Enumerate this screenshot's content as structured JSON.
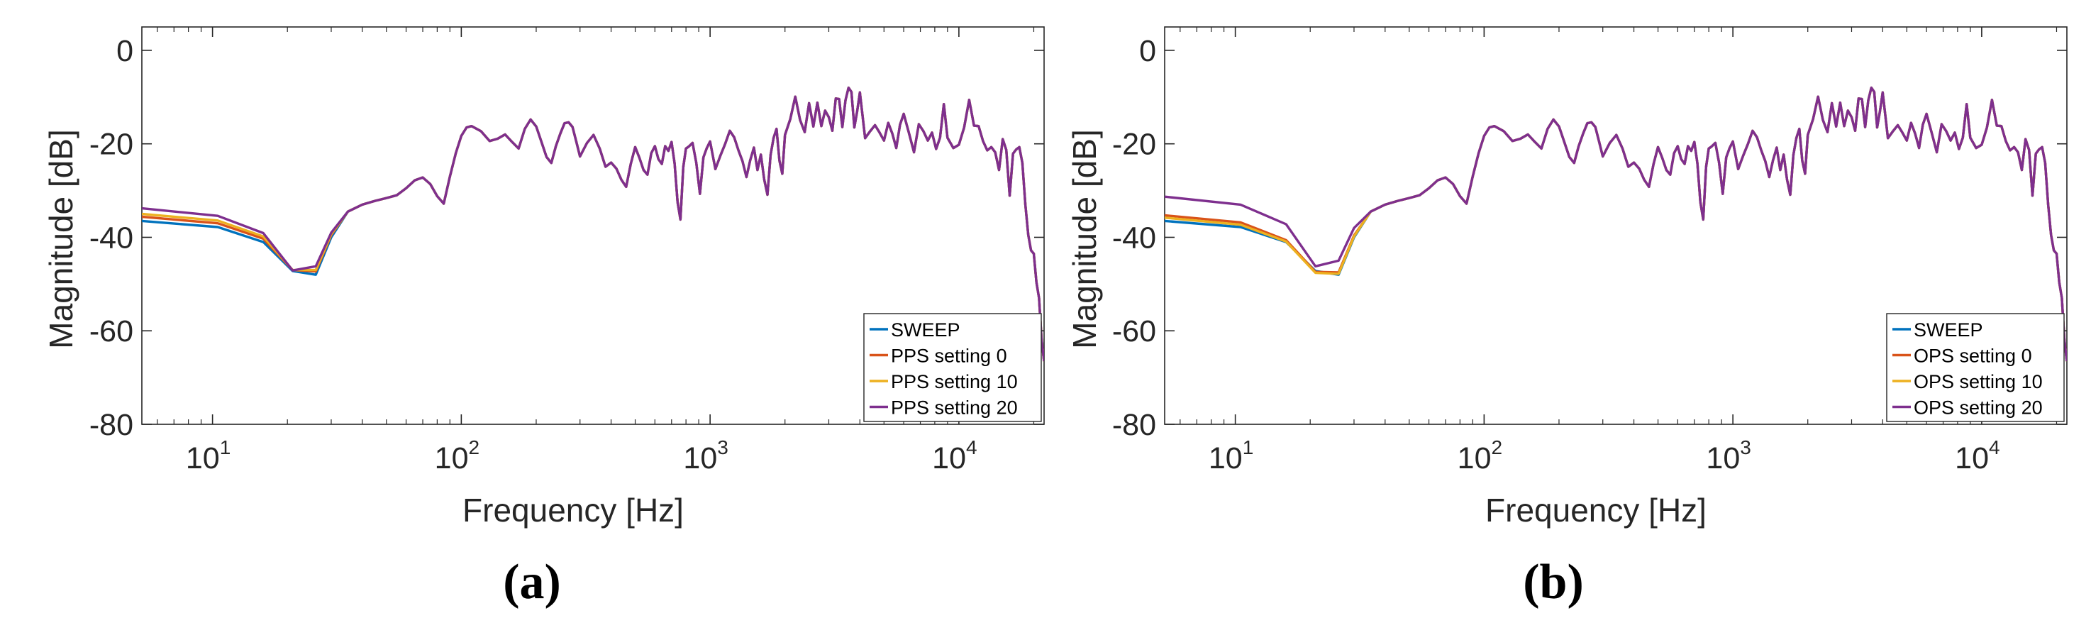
{
  "colors": {
    "sweep": "#0072BD",
    "setting0": "#D95319",
    "setting10": "#EDB120",
    "setting20": "#7E2F8E",
    "axis": "#262626"
  },
  "chart_data": [
    {
      "type": "line",
      "panel": "(a)",
      "xscale": "log",
      "xlabel": "Frequency [Hz]",
      "ylabel": "Magnitude [dB]",
      "xlim": [
        5.2,
        22000
      ],
      "ylim": [
        -80,
        5
      ],
      "xticks": [
        {
          "value": 10,
          "base": "10",
          "exp": "1"
        },
        {
          "value": 100,
          "base": "10",
          "exp": "2"
        },
        {
          "value": 1000,
          "base": "10",
          "exp": "3"
        },
        {
          "value": 10000,
          "base": "10",
          "exp": "4"
        }
      ],
      "yticks": [
        {
          "value": 0,
          "label": "0"
        },
        {
          "value": -20,
          "label": "-20"
        },
        {
          "value": -40,
          "label": "-40"
        },
        {
          "value": -60,
          "label": "-60"
        },
        {
          "value": -80,
          "label": "-80"
        }
      ],
      "legend_position": "bottom-right",
      "shared_response": {
        "x": [
          35,
          40,
          45,
          50,
          55,
          60,
          65,
          70,
          75,
          80,
          85,
          90,
          95,
          100,
          105,
          110,
          120,
          130,
          140,
          150,
          160,
          170,
          180,
          190,
          200,
          210,
          220,
          230,
          240,
          250,
          260,
          270,
          280,
          290,
          300,
          320,
          340,
          360,
          380,
          400,
          420,
          440,
          460,
          480,
          500,
          520,
          540,
          560,
          580,
          600,
          620,
          640,
          660,
          680,
          700,
          720,
          740,
          760,
          780,
          800,
          820,
          850,
          880,
          910,
          940,
          970,
          1000,
          1050,
          1100,
          1150,
          1200,
          1250,
          1300,
          1350,
          1400,
          1450,
          1500,
          1550,
          1600,
          1650,
          1700,
          1750,
          1800,
          1850,
          1900,
          1950,
          2000,
          2100,
          2200,
          2300,
          2400,
          2500,
          2600,
          2700,
          2800,
          2900,
          3000,
          3100,
          3200,
          3300,
          3400,
          3500,
          3600,
          3700,
          3800,
          3900,
          4000,
          4200,
          4400,
          4600,
          4800,
          5000,
          5200,
          5400,
          5600,
          5800,
          6000,
          6300,
          6600,
          6900,
          7200,
          7500,
          7800,
          8100,
          8400,
          8700,
          9000,
          9500,
          10000,
          10500,
          11000,
          11500,
          12000,
          12500,
          13000,
          13500,
          14000,
          14500,
          15000,
          15500,
          16000,
          16500,
          17000,
          17500,
          18000,
          18500,
          19000,
          19500,
          20000,
          20500,
          21000,
          21500,
          22000
        ],
        "y": [
          -34.5,
          -33.0,
          -32.2,
          -31.6,
          -31.0,
          -29.5,
          -27.8,
          -27.2,
          -28.6,
          -31.2,
          -32.8,
          -27.0,
          -22.0,
          -18.3,
          -16.5,
          -16.2,
          -17.3,
          -19.4,
          -18.9,
          -18.0,
          -19.6,
          -21.0,
          -16.8,
          -14.8,
          -16.3,
          -19.6,
          -22.8,
          -24.1,
          -20.5,
          -17.8,
          -15.6,
          -15.4,
          -16.4,
          -19.6,
          -22.7,
          -19.8,
          -18.1,
          -21.0,
          -24.9,
          -24.0,
          -25.3,
          -27.7,
          -29.2,
          -24.3,
          -20.7,
          -23.0,
          -25.6,
          -26.6,
          -22.0,
          -20.5,
          -23.3,
          -24.3,
          -20.5,
          -21.5,
          -19.6,
          -24.2,
          -32.5,
          -36.2,
          -25.0,
          -21.0,
          -20.6,
          -19.8,
          -24.1,
          -30.7,
          -22.9,
          -20.9,
          -19.5,
          -25.4,
          -22.5,
          -20.0,
          -17.2,
          -18.6,
          -21.4,
          -23.7,
          -27.1,
          -23.5,
          -20.8,
          -25.6,
          -22.3,
          -27.6,
          -30.9,
          -22.4,
          -18.7,
          -16.8,
          -23.6,
          -26.4,
          -18.1,
          -14.7,
          -9.9,
          -14.9,
          -17.5,
          -11.3,
          -16.3,
          -11.2,
          -16.2,
          -12.9,
          -14.3,
          -17.2,
          -10.3,
          -10.4,
          -16.4,
          -10.7,
          -8.0,
          -8.9,
          -16.5,
          -13.0,
          -9.0,
          -18.8,
          -17.3,
          -16.0,
          -17.6,
          -19.3,
          -15.5,
          -17.8,
          -20.9,
          -15.9,
          -13.6,
          -17.7,
          -21.8,
          -15.8,
          -17.3,
          -19.3,
          -17.6,
          -21.1,
          -18.7,
          -11.5,
          -18.7,
          -20.9,
          -20.2,
          -16.5,
          -10.6,
          -16.1,
          -16.2,
          -19.4,
          -21.4,
          -20.7,
          -21.8,
          -25.6,
          -19.0,
          -21.3,
          -31.1,
          -22.1,
          -21.2,
          -20.7,
          -24.1,
          -33.0,
          -39.5,
          -42.8,
          -43.5,
          -49.6,
          -53.0,
          -62.0,
          -66.5
        ]
      },
      "series": [
        {
          "name": "SWEEP",
          "color_key": "sweep",
          "low_x": [
            5.2,
            10.5,
            16,
            21,
            26,
            30
          ],
          "low_y": [
            -36.5,
            -37.8,
            -41.0,
            -47.2,
            -48.0,
            -40.0
          ]
        },
        {
          "name": "PPS setting 0",
          "color_key": "setting0",
          "low_x": [
            5.2,
            10.5,
            16,
            21,
            26,
            30
          ],
          "low_y": [
            -35.6,
            -37.0,
            -40.3,
            -47.0,
            -47.3,
            -39.5
          ]
        },
        {
          "name": "PPS setting 10",
          "color_key": "setting10",
          "low_x": [
            5.2,
            10.5,
            16,
            21,
            26,
            30
          ],
          "low_y": [
            -35.0,
            -36.4,
            -39.8,
            -47.0,
            -47.0,
            -39.3
          ]
        },
        {
          "name": "PPS setting 20",
          "color_key": "setting20",
          "low_x": [
            5.2,
            10.5,
            16,
            21,
            26,
            30
          ],
          "low_y": [
            -33.8,
            -35.4,
            -39.1,
            -47.1,
            -46.2,
            -39.0
          ]
        }
      ],
      "caption": "(a)"
    },
    {
      "type": "line",
      "panel": "(b)",
      "xscale": "log",
      "xlabel": "Frequency [Hz]",
      "ylabel": "Magnitude [dB]",
      "xlim": [
        5.2,
        22000
      ],
      "ylim": [
        -80,
        5
      ],
      "xticks": [
        {
          "value": 10,
          "base": "10",
          "exp": "1"
        },
        {
          "value": 100,
          "base": "10",
          "exp": "2"
        },
        {
          "value": 1000,
          "base": "10",
          "exp": "3"
        },
        {
          "value": 10000,
          "base": "10",
          "exp": "4"
        }
      ],
      "yticks": [
        {
          "value": 0,
          "label": "0"
        },
        {
          "value": -20,
          "label": "-20"
        },
        {
          "value": -40,
          "label": "-40"
        },
        {
          "value": -60,
          "label": "-60"
        },
        {
          "value": -80,
          "label": "-80"
        }
      ],
      "legend_position": "bottom-right",
      "shared_response": {
        "x": [
          35,
          40,
          45,
          50,
          55,
          60,
          65,
          70,
          75,
          80,
          85,
          90,
          95,
          100,
          105,
          110,
          120,
          130,
          140,
          150,
          160,
          170,
          180,
          190,
          200,
          210,
          220,
          230,
          240,
          250,
          260,
          270,
          280,
          290,
          300,
          320,
          340,
          360,
          380,
          400,
          420,
          440,
          460,
          480,
          500,
          520,
          540,
          560,
          580,
          600,
          620,
          640,
          660,
          680,
          700,
          720,
          740,
          760,
          780,
          800,
          820,
          850,
          880,
          910,
          940,
          970,
          1000,
          1050,
          1100,
          1150,
          1200,
          1250,
          1300,
          1350,
          1400,
          1450,
          1500,
          1550,
          1600,
          1650,
          1700,
          1750,
          1800,
          1850,
          1900,
          1950,
          2000,
          2100,
          2200,
          2300,
          2400,
          2500,
          2600,
          2700,
          2800,
          2900,
          3000,
          3100,
          3200,
          3300,
          3400,
          3500,
          3600,
          3700,
          3800,
          3900,
          4000,
          4200,
          4400,
          4600,
          4800,
          5000,
          5200,
          5400,
          5600,
          5800,
          6000,
          6300,
          6600,
          6900,
          7200,
          7500,
          7800,
          8100,
          8400,
          8700,
          9000,
          9500,
          10000,
          10500,
          11000,
          11500,
          12000,
          12500,
          13000,
          13500,
          14000,
          14500,
          15000,
          15500,
          16000,
          16500,
          17000,
          17500,
          18000,
          18500,
          19000,
          19500,
          20000,
          20500,
          21000,
          21500,
          22000
        ],
        "y": [
          -34.5,
          -33.0,
          -32.2,
          -31.6,
          -31.0,
          -29.5,
          -27.8,
          -27.2,
          -28.6,
          -31.2,
          -32.8,
          -27.0,
          -22.0,
          -18.3,
          -16.5,
          -16.2,
          -17.3,
          -19.4,
          -18.9,
          -18.0,
          -19.6,
          -21.0,
          -16.8,
          -14.8,
          -16.3,
          -19.6,
          -22.8,
          -24.1,
          -20.5,
          -17.8,
          -15.6,
          -15.4,
          -16.4,
          -19.6,
          -22.7,
          -19.8,
          -18.1,
          -21.0,
          -24.9,
          -24.0,
          -25.3,
          -27.7,
          -29.2,
          -24.3,
          -20.7,
          -23.0,
          -25.6,
          -26.6,
          -22.0,
          -20.5,
          -23.3,
          -24.3,
          -20.5,
          -21.5,
          -19.6,
          -24.2,
          -32.5,
          -36.2,
          -25.0,
          -21.0,
          -20.6,
          -19.8,
          -24.1,
          -30.7,
          -22.9,
          -20.9,
          -19.5,
          -25.4,
          -22.5,
          -20.0,
          -17.2,
          -18.6,
          -21.4,
          -23.7,
          -27.1,
          -23.5,
          -20.8,
          -25.6,
          -22.3,
          -27.6,
          -30.9,
          -22.4,
          -18.7,
          -16.8,
          -23.6,
          -26.4,
          -18.1,
          -14.7,
          -9.9,
          -14.9,
          -17.5,
          -11.3,
          -16.3,
          -11.2,
          -16.2,
          -12.9,
          -14.3,
          -17.2,
          -10.3,
          -10.4,
          -16.4,
          -10.7,
          -8.0,
          -8.9,
          -16.5,
          -13.0,
          -9.0,
          -18.8,
          -17.3,
          -16.0,
          -17.6,
          -19.3,
          -15.5,
          -17.8,
          -20.9,
          -15.9,
          -13.6,
          -17.7,
          -21.8,
          -15.8,
          -17.3,
          -19.3,
          -17.6,
          -21.1,
          -18.7,
          -11.5,
          -18.7,
          -20.9,
          -20.2,
          -16.5,
          -10.6,
          -16.1,
          -16.2,
          -19.4,
          -21.4,
          -20.7,
          -21.8,
          -25.6,
          -19.0,
          -21.3,
          -31.1,
          -22.1,
          -21.2,
          -20.7,
          -24.1,
          -33.0,
          -39.5,
          -42.8,
          -43.5,
          -49.6,
          -53.0,
          -62.0,
          -66.5
        ]
      },
      "series": [
        {
          "name": "SWEEP",
          "color_key": "sweep",
          "low_x": [
            5.2,
            10.5,
            16,
            21,
            26,
            30
          ],
          "low_y": [
            -36.5,
            -37.8,
            -41.0,
            -47.2,
            -48.0,
            -40.0
          ]
        },
        {
          "name": "OPS setting 0",
          "color_key": "setting0",
          "low_x": [
            5.2,
            10.5,
            16,
            21,
            26,
            30
          ],
          "low_y": [
            -35.3,
            -36.8,
            -40.6,
            -47.4,
            -47.5,
            -39.6
          ]
        },
        {
          "name": "OPS setting 10",
          "color_key": "setting10",
          "low_x": [
            5.2,
            10.5,
            16,
            21,
            26,
            30
          ],
          "low_y": [
            -35.8,
            -37.3,
            -40.9,
            -47.6,
            -47.8,
            -39.8
          ]
        },
        {
          "name": "OPS setting 20",
          "color_key": "setting20",
          "low_x": [
            5.2,
            10.5,
            16,
            21,
            26,
            30
          ],
          "low_y": [
            -31.3,
            -33.0,
            -37.2,
            -46.2,
            -45.0,
            -38.0
          ]
        }
      ],
      "caption": "(b)"
    }
  ]
}
